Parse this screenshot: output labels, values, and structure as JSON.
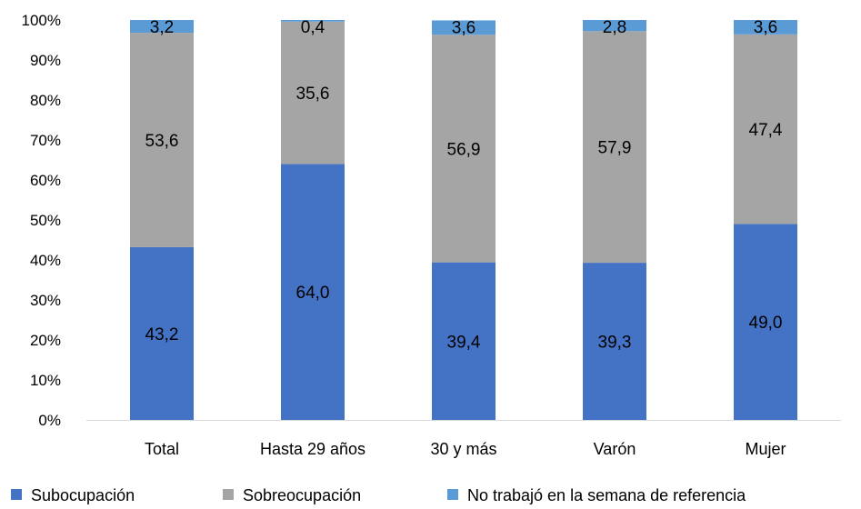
{
  "chart_data": {
    "type": "bar",
    "stacked": true,
    "percent": true,
    "categories": [
      "Total",
      "Hasta 29 años",
      "30 y más",
      "Varón",
      "Mujer"
    ],
    "series": [
      {
        "name": "Subocupación",
        "color": "#4472c4",
        "values": [
          43.2,
          64.0,
          39.4,
          39.3,
          49.0
        ],
        "labels": [
          "43,2",
          "64,0",
          "39,4",
          "39,3",
          "49,0"
        ]
      },
      {
        "name": "Sobreocupación",
        "color": "#a5a5a5",
        "values": [
          53.6,
          35.6,
          56.9,
          57.9,
          47.4
        ],
        "labels": [
          "53,6",
          "35,6",
          "56,9",
          "57,9",
          "47,4"
        ]
      },
      {
        "name": "No trabajó en la semana de referencia",
        "color": "#5b9bd5",
        "values": [
          3.2,
          0.4,
          3.6,
          2.8,
          3.6
        ],
        "labels": [
          "3,2",
          "0,4",
          "3,6",
          "2,8",
          "3,6"
        ]
      }
    ],
    "y_ticks": [
      "0%",
      "10%",
      "20%",
      "30%",
      "40%",
      "50%",
      "60%",
      "70%",
      "80%",
      "90%",
      "100%"
    ],
    "ylim": [
      0,
      100
    ],
    "grid": false,
    "legend_position": "bottom"
  }
}
